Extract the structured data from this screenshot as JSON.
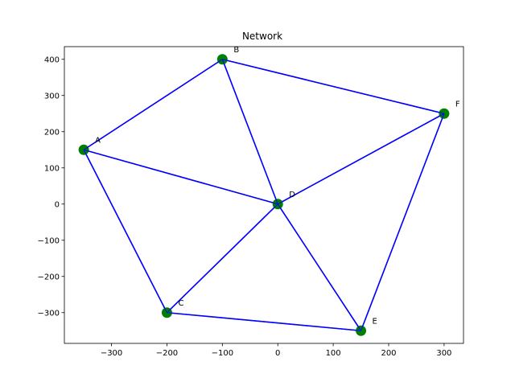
{
  "chart_data": {
    "type": "scatter",
    "title": "Network",
    "xlabel": "",
    "ylabel": "",
    "xlim": [
      -385,
      335
    ],
    "ylim": [
      -385,
      435
    ],
    "xticks": [
      -300,
      -200,
      -100,
      0,
      100,
      200,
      300
    ],
    "yticks": [
      -300,
      -200,
      -100,
      0,
      100,
      200,
      300,
      400
    ],
    "grid": false,
    "node_color": "#008000",
    "edge_color": "#0000ff",
    "nodes": [
      {
        "label": "A",
        "x": -350,
        "y": 150
      },
      {
        "label": "B",
        "x": -100,
        "y": 400
      },
      {
        "label": "C",
        "x": -200,
        "y": -300
      },
      {
        "label": "D",
        "x": 0,
        "y": 0
      },
      {
        "label": "E",
        "x": 150,
        "y": -350
      },
      {
        "label": "F",
        "x": 300,
        "y": 250
      }
    ],
    "edges": [
      [
        "A",
        "B"
      ],
      [
        "A",
        "C"
      ],
      [
        "A",
        "D"
      ],
      [
        "B",
        "D"
      ],
      [
        "B",
        "F"
      ],
      [
        "C",
        "D"
      ],
      [
        "C",
        "E"
      ],
      [
        "D",
        "E"
      ],
      [
        "D",
        "F"
      ],
      [
        "E",
        "F"
      ]
    ]
  }
}
